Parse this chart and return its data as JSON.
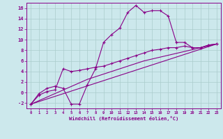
{
  "xlabel": "Windchill (Refroidissement éolien,°C)",
  "background_color": "#cce8ec",
  "grid_color": "#aacccc",
  "line_color": "#880088",
  "x_ticks": [
    0,
    1,
    2,
    3,
    4,
    5,
    6,
    7,
    8,
    9,
    10,
    11,
    12,
    13,
    14,
    15,
    16,
    17,
    18,
    19,
    20,
    21,
    22,
    23
  ],
  "y_ticks": [
    -2,
    0,
    2,
    4,
    6,
    8,
    10,
    12,
    14,
    16
  ],
  "ylim": [
    -3.0,
    17.0
  ],
  "xlim": [
    -0.5,
    23.5
  ],
  "curve1_x": [
    0,
    1,
    2,
    3,
    4,
    5,
    6,
    7,
    8,
    9,
    10,
    11,
    12,
    13,
    14,
    15,
    16,
    17,
    18,
    19,
    20,
    21,
    22,
    23
  ],
  "curve1_y": [
    -2.2,
    -0.2,
    0.8,
    1.2,
    0.8,
    -2.2,
    -2.2,
    1.5,
    4.5,
    9.5,
    11.0,
    12.2,
    15.2,
    16.5,
    15.2,
    15.5,
    15.5,
    14.5,
    9.5,
    9.5,
    8.5,
    8.5,
    9.0,
    9.2
  ],
  "curve2_x": [
    0,
    1,
    2,
    3,
    4,
    5,
    6,
    7,
    8,
    9,
    10,
    11,
    12,
    13,
    14,
    15,
    16,
    17,
    18,
    19,
    20,
    21,
    22,
    23
  ],
  "curve2_y": [
    -2.2,
    -0.5,
    0.2,
    0.5,
    4.5,
    4.0,
    4.2,
    4.5,
    4.8,
    5.0,
    5.5,
    6.0,
    6.5,
    7.0,
    7.5,
    8.0,
    8.2,
    8.5,
    8.5,
    8.8,
    8.5,
    8.5,
    9.0,
    9.2
  ],
  "line1_x": [
    0,
    23
  ],
  "line1_y": [
    -2.2,
    9.2
  ],
  "line2_x": [
    0,
    7,
    14,
    23
  ],
  "line2_y": [
    -2.2,
    2.5,
    6.0,
    9.2
  ]
}
